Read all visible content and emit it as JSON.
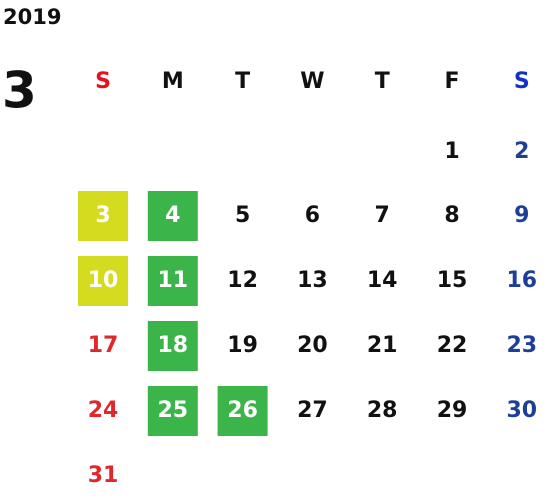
{
  "calendar": {
    "year": "2019",
    "month": "3",
    "weekdays": [
      "S",
      "M",
      "T",
      "W",
      "T",
      "F",
      "S"
    ],
    "weekday_colors": [
      "#e8101a",
      "#111111",
      "#111111",
      "#111111",
      "#111111",
      "#111111",
      "#1530c8"
    ],
    "day_colors": [
      "#e0282c",
      "#111111",
      "#111111",
      "#111111",
      "#111111",
      "#111111",
      "#1e3f96"
    ],
    "highlight_text_color": "#ffffff",
    "weeks": [
      [
        null,
        null,
        null,
        null,
        null,
        {
          "text": "1"
        },
        {
          "text": "2"
        }
      ],
      [
        {
          "text": "3",
          "fill": "#d5dc1f"
        },
        {
          "text": "4",
          "fill": "#3bb54a"
        },
        {
          "text": "5"
        },
        {
          "text": "6"
        },
        {
          "text": "7"
        },
        {
          "text": "8"
        },
        {
          "text": "9"
        }
      ],
      [
        {
          "text": "10",
          "fill": "#d5dc1f"
        },
        {
          "text": "11",
          "fill": "#3bb54a"
        },
        {
          "text": "12"
        },
        {
          "text": "13"
        },
        {
          "text": "14"
        },
        {
          "text": "15"
        },
        {
          "text": "16"
        }
      ],
      [
        {
          "text": "17"
        },
        {
          "text": "18",
          "fill": "#3bb54a"
        },
        {
          "text": "19"
        },
        {
          "text": "20"
        },
        {
          "text": "21"
        },
        {
          "text": "22"
        },
        {
          "text": "23"
        }
      ],
      [
        {
          "text": "24"
        },
        {
          "text": "25",
          "fill": "#3bb54a"
        },
        {
          "text": "26",
          "fill": "#3bb54a"
        },
        {
          "text": "27"
        },
        {
          "text": "28"
        },
        {
          "text": "29"
        },
        {
          "text": "30"
        }
      ],
      [
        {
          "text": "31"
        }
      ]
    ]
  }
}
